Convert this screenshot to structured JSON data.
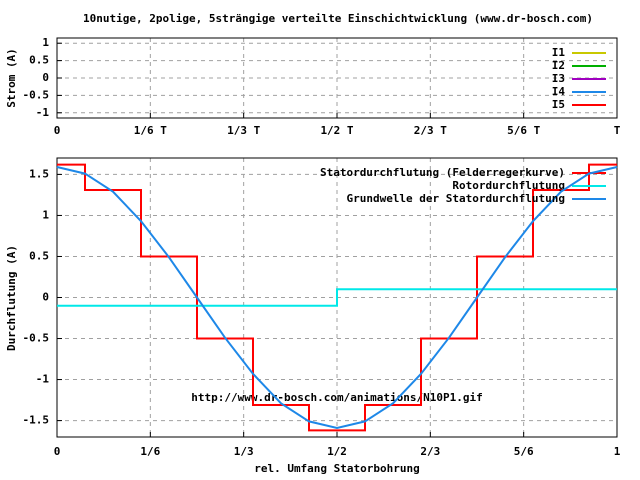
{
  "chart_data": [
    {
      "type": "line",
      "title": "10nutige, 2polige, 5strängige verteilte Einschichtwicklung (www.dr-bosch.com)",
      "y_label": "Strom (A)",
      "xlim": [
        0,
        1
      ],
      "ylim": [
        -1.15,
        1.15
      ],
      "xticks": [
        0,
        {
          "value": 0.16667,
          "label": "1/6 T"
        },
        {
          "value": 0.33333,
          "label": "1/3 T"
        },
        {
          "value": 0.5,
          "label": "1/2 T"
        },
        {
          "value": 0.66667,
          "label": "2/3 T"
        },
        {
          "value": 0.83333,
          "label": "5/6 T"
        },
        {
          "value": 1,
          "label": "T"
        }
      ],
      "yticks": [
        1,
        0.5,
        0,
        -0.5,
        -1
      ],
      "grid": true,
      "legend": "upper right",
      "series": [
        {
          "name": "I1",
          "color": "#c8c800"
        },
        {
          "name": "I2",
          "color": "#00b000"
        },
        {
          "name": "I3",
          "color": "#a000c0"
        },
        {
          "name": "I4",
          "color": "#1e88e8"
        },
        {
          "name": "I5",
          "color": "#ff0000"
        }
      ]
    },
    {
      "type": "line",
      "x_label": "rel. Umfang Statorbohrung",
      "y_label": "Durchflutung (A)",
      "annotation": "http://www.dr-bosch.com/animations/N10P1.gif",
      "xlim": [
        0,
        1
      ],
      "ylim": [
        -1.7,
        1.7
      ],
      "xticks": [
        0,
        {
          "value": 0.16667,
          "label": "1/6"
        },
        {
          "value": 0.33333,
          "label": "1/3"
        },
        {
          "value": 0.5,
          "label": "1/2"
        },
        {
          "value": 0.66667,
          "label": "2/3"
        },
        {
          "value": 0.83333,
          "label": "5/6"
        },
        1
      ],
      "yticks": [
        1.5,
        1,
        0.5,
        0,
        -0.5,
        -1,
        -1.5
      ],
      "grid": true,
      "legend": "upper right",
      "series": [
        {
          "name": "Statordurchflutung (Felderregerkurve)",
          "color": "#ff0000",
          "x": [
            0,
            0.05,
            0.05,
            0.15,
            0.15,
            0.25,
            0.25,
            0.35,
            0.35,
            0.45,
            0.45,
            0.55,
            0.55,
            0.65,
            0.65,
            0.75,
            0.75,
            0.85,
            0.85,
            0.95,
            0.95,
            1
          ],
          "values": [
            1.62,
            1.62,
            1.31,
            1.31,
            0.5,
            0.5,
            -0.5,
            -0.5,
            -1.31,
            -1.31,
            -1.62,
            -1.62,
            -1.31,
            -1.31,
            -0.5,
            -0.5,
            0.5,
            0.5,
            1.31,
            1.31,
            1.62,
            1.62
          ]
        },
        {
          "name": "Rotordurchflutung",
          "color": "#00e8e8",
          "x": [
            0,
            0.5,
            0.5,
            1
          ],
          "values": [
            -0.1,
            -0.1,
            0.1,
            0.1
          ]
        },
        {
          "name": "Grundwelle der Statordurchflutung",
          "color": "#1e88e8",
          "x": [
            0,
            0.05,
            0.1,
            0.15,
            0.2,
            0.25,
            0.3,
            0.35,
            0.4,
            0.45,
            0.5,
            0.55,
            0.6,
            0.65,
            0.7,
            0.75,
            0.8,
            0.85,
            0.9,
            0.95,
            1
          ],
          "values": [
            1.59,
            1.51,
            1.29,
            0.93,
            0.49,
            0,
            -0.49,
            -0.93,
            -1.29,
            -1.51,
            -1.59,
            -1.51,
            -1.29,
            -0.93,
            -0.49,
            0,
            0.49,
            0.93,
            1.29,
            1.51,
            1.59
          ]
        }
      ]
    }
  ]
}
